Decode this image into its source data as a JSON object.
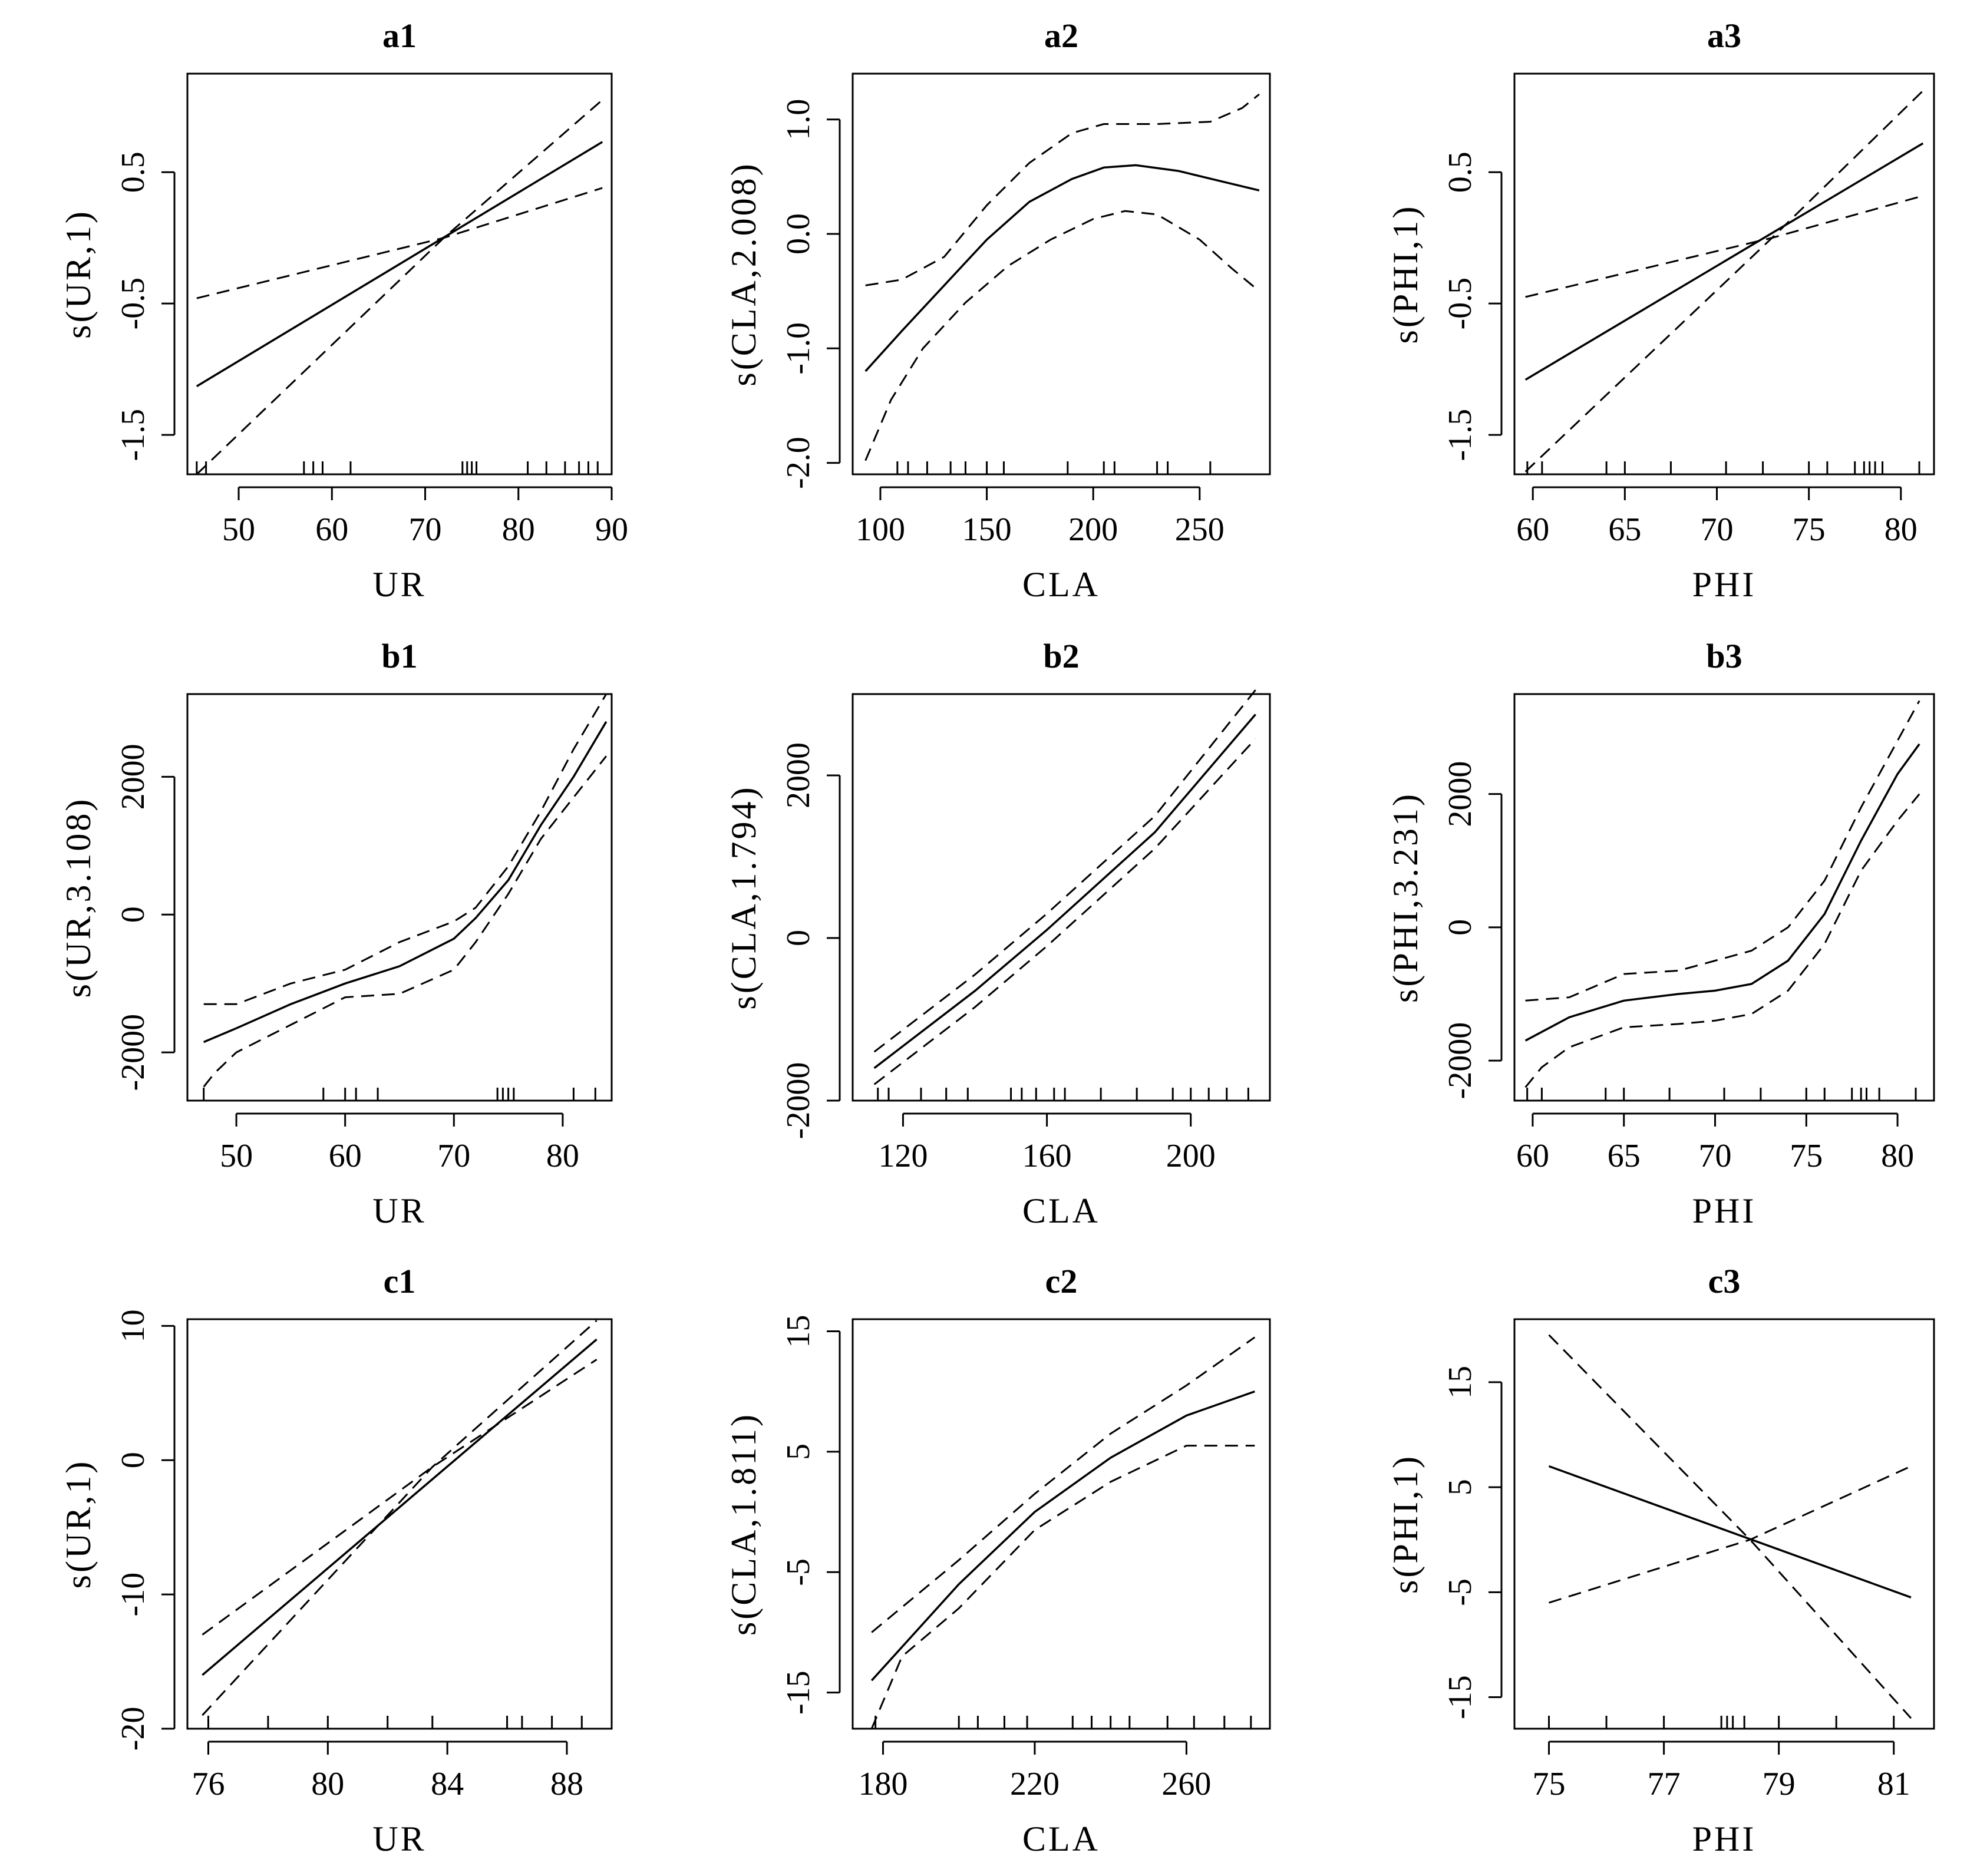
{
  "chart_data": [
    {
      "id": "a1",
      "type": "line",
      "title": "a1",
      "xlabel": "UR",
      "ylabel": "s(UR,1)",
      "xlim": [
        44.5,
        90
      ],
      "ylim": [
        -1.8,
        1.25
      ],
      "xticks": [
        50,
        60,
        70,
        80,
        90
      ],
      "xtick_labels": [
        "50",
        "60",
        "70",
        "80",
        "90"
      ],
      "yticks": [
        -1.5,
        -0.5,
        0.5
      ],
      "ytick_labels": [
        "-1.5",
        "-0.5",
        "0.5"
      ],
      "series": [
        {
          "name": "fit",
          "style": "solid",
          "x": [
            45.5,
            89
          ],
          "y": [
            -1.13,
            0.73
          ]
        },
        {
          "name": "upper",
          "style": "dashed",
          "x": [
            45.5,
            72,
            89
          ],
          "y": [
            -0.46,
            0.0,
            0.38
          ]
        },
        {
          "name": "lower",
          "style": "dashed",
          "x": [
            45.5,
            72,
            89
          ],
          "y": [
            -1.8,
            0.0,
            1.05
          ]
        }
      ],
      "rug": [
        45.5,
        46.5,
        57,
        58,
        59,
        62,
        74,
        74.5,
        75,
        75.5,
        81,
        83,
        85,
        86.5,
        87.5,
        88.5
      ]
    },
    {
      "id": "a2",
      "type": "line",
      "title": "a2",
      "xlabel": "CLA",
      "ylabel": "s(CLA,2.008)",
      "xlim": [
        87,
        283
      ],
      "ylim": [
        -2.1,
        1.4
      ],
      "xticks": [
        100,
        150,
        200,
        250
      ],
      "xtick_labels": [
        "100",
        "150",
        "200",
        "250"
      ],
      "yticks": [
        -2.0,
        -1.0,
        0.0,
        1.0
      ],
      "ytick_labels": [
        "-2.0",
        "-1.0",
        "0.0",
        "1.0"
      ],
      "series": [
        {
          "name": "fit",
          "style": "solid",
          "x": [
            93,
            110,
            130,
            150,
            170,
            190,
            205,
            220,
            240,
            260,
            278
          ],
          "y": [
            -1.2,
            -0.85,
            -0.45,
            -0.05,
            0.28,
            0.48,
            0.58,
            0.6,
            0.55,
            0.46,
            0.38
          ]
        },
        {
          "name": "upper",
          "style": "dashed",
          "x": [
            93,
            110,
            130,
            150,
            170,
            190,
            205,
            230,
            255,
            270,
            278
          ],
          "y": [
            -0.45,
            -0.4,
            -0.2,
            0.25,
            0.62,
            0.88,
            0.96,
            0.96,
            0.98,
            1.1,
            1.22
          ]
        },
        {
          "name": "lower",
          "style": "dashed",
          "x": [
            93,
            105,
            120,
            140,
            160,
            180,
            200,
            215,
            230,
            250,
            265,
            278
          ],
          "y": [
            -1.98,
            -1.45,
            -1.0,
            -0.6,
            -0.28,
            -0.05,
            0.13,
            0.2,
            0.17,
            -0.05,
            -0.3,
            -0.5
          ]
        }
      ],
      "rug": [
        108,
        113,
        122,
        133,
        140,
        150,
        158,
        188,
        205,
        210,
        230,
        235,
        255
      ]
    },
    {
      "id": "a3",
      "type": "line",
      "title": "a3",
      "xlabel": "PHI",
      "ylabel": "s(PHI,1)",
      "xlim": [
        59,
        81.8
      ],
      "ylim": [
        -1.8,
        1.25
      ],
      "xticks": [
        60,
        65,
        70,
        75,
        80
      ],
      "xtick_labels": [
        "60",
        "65",
        "70",
        "75",
        "80"
      ],
      "yticks": [
        -1.5,
        -0.5,
        0.5
      ],
      "ytick_labels": [
        "-1.5",
        "-0.5",
        "0.5"
      ],
      "series": [
        {
          "name": "fit",
          "style": "solid",
          "x": [
            59.6,
            81.2
          ],
          "y": [
            -1.08,
            0.72
          ]
        },
        {
          "name": "upper",
          "style": "dashed",
          "x": [
            59.6,
            73,
            81.2
          ],
          "y": [
            -0.45,
            0.0,
            0.32
          ]
        },
        {
          "name": "lower",
          "style": "dashed",
          "x": [
            59.6,
            73,
            81.2
          ],
          "y": [
            -1.78,
            0.0,
            1.12
          ]
        }
      ],
      "rug": [
        59.7,
        60.5,
        64,
        65,
        67.5,
        70.5,
        72.5,
        75,
        76,
        77.5,
        78,
        78.3,
        78.6,
        79,
        81
      ]
    },
    {
      "id": "b1",
      "type": "line",
      "title": "b1",
      "xlabel": "UR",
      "ylabel": "s(UR,3.108)",
      "xlim": [
        45.5,
        84.5
      ],
      "ylim": [
        -2700,
        3200
      ],
      "xticks": [
        50,
        60,
        70,
        80
      ],
      "xtick_labels": [
        "50",
        "60",
        "70",
        "80"
      ],
      "yticks": [
        -2000,
        0,
        2000
      ],
      "ytick_labels": [
        "-2000",
        "0",
        "2000"
      ],
      "series": [
        {
          "name": "fit",
          "style": "solid",
          "x": [
            47,
            50,
            55,
            60,
            65,
            70,
            72,
            75,
            78,
            81,
            84
          ],
          "y": [
            -1850,
            -1650,
            -1300,
            -1000,
            -750,
            -350,
            -50,
            500,
            1300,
            2000,
            2800
          ]
        },
        {
          "name": "upper",
          "style": "dashed",
          "x": [
            47,
            50,
            55,
            60,
            65,
            70,
            72,
            75,
            78,
            81,
            84
          ],
          "y": [
            -1300,
            -1300,
            -1000,
            -800,
            -400,
            -100,
            100,
            700,
            1500,
            2400,
            3200
          ]
        },
        {
          "name": "lower",
          "style": "dashed",
          "x": [
            47,
            48,
            50,
            55,
            60,
            65,
            70,
            72,
            75,
            78,
            81,
            84
          ],
          "y": [
            -2500,
            -2300,
            -2000,
            -1600,
            -1200,
            -1150,
            -800,
            -400,
            300,
            1100,
            1700,
            2300
          ]
        }
      ],
      "rug": [
        47,
        58,
        60,
        61,
        63,
        74,
        74.5,
        75,
        75.5,
        81,
        83
      ]
    },
    {
      "id": "b2",
      "type": "line",
      "title": "b2",
      "xlabel": "CLA",
      "ylabel": "s(CLA,1.794)",
      "xlim": [
        106,
        222
      ],
      "ylim": [
        -2000,
        3000
      ],
      "xticks": [
        120,
        160,
        200
      ],
      "xtick_labels": [
        "120",
        "160",
        "200"
      ],
      "yticks": [
        -2000,
        0,
        2000
      ],
      "ytick_labels": [
        "-2000",
        "0",
        "2000"
      ],
      "series": [
        {
          "name": "fit",
          "style": "solid",
          "x": [
            112,
            140,
            160,
            190,
            218
          ],
          "y": [
            -1600,
            -650,
            100,
            1300,
            2750
          ]
        },
        {
          "name": "upper",
          "style": "dashed",
          "x": [
            112,
            140,
            160,
            190,
            218
          ],
          "y": [
            -1400,
            -450,
            300,
            1500,
            3050
          ]
        },
        {
          "name": "lower",
          "style": "dashed",
          "x": [
            112,
            140,
            160,
            190,
            218
          ],
          "y": [
            -1800,
            -850,
            -100,
            1100,
            2450
          ]
        }
      ],
      "rug": [
        113,
        116,
        125,
        132,
        138,
        150,
        153,
        157,
        162,
        165,
        175,
        185,
        195,
        200,
        205,
        210,
        216
      ]
    },
    {
      "id": "b3",
      "type": "line",
      "title": "b3",
      "xlabel": "PHI",
      "ylabel": "s(PHI,3.231)",
      "xlim": [
        59,
        82
      ],
      "ylim": [
        -2600,
        3500
      ],
      "xticks": [
        60,
        65,
        70,
        75,
        80
      ],
      "xtick_labels": [
        "60",
        "65",
        "70",
        "75",
        "80"
      ],
      "yticks": [
        -2000,
        0,
        2000
      ],
      "ytick_labels": [
        "-2000",
        "0",
        "2000"
      ],
      "series": [
        {
          "name": "fit",
          "style": "solid",
          "x": [
            59.6,
            62,
            65,
            68,
            70,
            72,
            74,
            76,
            78,
            80,
            81.2
          ],
          "y": [
            -1700,
            -1350,
            -1100,
            -1000,
            -950,
            -850,
            -500,
            200,
            1300,
            2300,
            2750
          ]
        },
        {
          "name": "upper",
          "style": "dashed",
          "x": [
            59.6,
            62,
            65,
            68,
            70,
            72,
            74,
            76,
            78,
            80,
            81.2
          ],
          "y": [
            -1100,
            -1050,
            -700,
            -650,
            -500,
            -350,
            0,
            700,
            1800,
            2800,
            3400
          ]
        },
        {
          "name": "lower",
          "style": "dashed",
          "x": [
            59.6,
            60.5,
            62,
            65,
            68,
            70,
            72,
            74,
            76,
            78,
            80,
            81.2
          ],
          "y": [
            -2400,
            -2100,
            -1800,
            -1500,
            -1450,
            -1400,
            -1300,
            -950,
            -250,
            850,
            1600,
            2000
          ]
        }
      ],
      "rug": [
        59.7,
        60.5,
        64,
        65,
        67.5,
        70.5,
        72.5,
        75,
        76,
        77.5,
        78,
        78.3,
        79,
        81
      ]
    },
    {
      "id": "c1",
      "type": "line",
      "title": "c1",
      "xlabel": "UR",
      "ylabel": "s(UR,1)",
      "xlim": [
        75.3,
        89.5
      ],
      "ylim": [
        -20,
        10.5
      ],
      "xticks": [
        76,
        80,
        84,
        88
      ],
      "xtick_labels": [
        "76",
        "80",
        "84",
        "88"
      ],
      "yticks": [
        -20,
        -10,
        0,
        10
      ],
      "ytick_labels": [
        "-20",
        "-10",
        "0",
        "10"
      ],
      "series": [
        {
          "name": "fit",
          "style": "solid",
          "x": [
            75.8,
            89
          ],
          "y": [
            -16,
            9
          ]
        },
        {
          "name": "upper",
          "style": "dashed",
          "x": [
            75.8,
            83.5,
            89
          ],
          "y": [
            -13,
            -0.5,
            7.5
          ]
        },
        {
          "name": "lower",
          "style": "dashed",
          "x": [
            75.8,
            83.5,
            89
          ],
          "y": [
            -19,
            -0.5,
            10.4
          ]
        }
      ],
      "rug": [
        76,
        78,
        80,
        82,
        83.5,
        86,
        86.5,
        87.5,
        88.5
      ]
    },
    {
      "id": "c2",
      "type": "line",
      "title": "c2",
      "xlabel": "CLA",
      "ylabel": "s(CLA,1.811)",
      "xlim": [
        172,
        282
      ],
      "ylim": [
        -18,
        16
      ],
      "xticks": [
        180,
        220,
        260
      ],
      "xtick_labels": [
        "180",
        "220",
        "260"
      ],
      "yticks": [
        -15,
        -5,
        5,
        15
      ],
      "ytick_labels": [
        "-15",
        "-5",
        "5",
        "15"
      ],
      "series": [
        {
          "name": "fit",
          "style": "solid",
          "x": [
            177,
            200,
            220,
            240,
            260,
            278
          ],
          "y": [
            -14,
            -6,
            0,
            4.5,
            8,
            10
          ]
        },
        {
          "name": "upper",
          "style": "dashed",
          "x": [
            177,
            200,
            220,
            240,
            260,
            278
          ],
          "y": [
            -10,
            -4,
            1.5,
            6.5,
            10.5,
            14.5
          ]
        },
        {
          "name": "lower",
          "style": "dashed",
          "x": [
            177,
            185,
            200,
            220,
            240,
            260,
            278
          ],
          "y": [
            -18,
            -12,
            -8,
            -1.5,
            2.5,
            5.5,
            5.5
          ]
        }
      ],
      "rug": [
        178,
        200,
        205,
        212,
        218,
        230,
        235,
        240,
        245,
        255,
        262,
        270,
        277
      ]
    },
    {
      "id": "c3",
      "type": "line",
      "title": "c3",
      "xlabel": "PHI",
      "ylabel": "s(PHI,1)",
      "xlim": [
        74.4,
        81.7
      ],
      "ylim": [
        -18,
        21
      ],
      "xticks": [
        75,
        77,
        79,
        81
      ],
      "xtick_labels": [
        "75",
        "77",
        "79",
        "81"
      ],
      "yticks": [
        -15,
        -5,
        5,
        15
      ],
      "ytick_labels": [
        "-15",
        "-5",
        "5",
        "15"
      ],
      "series": [
        {
          "name": "fit",
          "style": "solid",
          "x": [
            75,
            81.3
          ],
          "y": [
            7,
            -5.5
          ]
        },
        {
          "name": "upper",
          "style": "dashed",
          "x": [
            75,
            78.5,
            81.3
          ],
          "y": [
            19.5,
            0,
            -17
          ]
        },
        {
          "name": "lower",
          "style": "dashed",
          "x": [
            75,
            78.5,
            81.3
          ],
          "y": [
            -6,
            0,
            7
          ]
        }
      ],
      "rug": [
        75,
        76,
        77,
        78,
        78.1,
        78.2,
        78.4,
        79,
        80,
        81
      ]
    }
  ]
}
